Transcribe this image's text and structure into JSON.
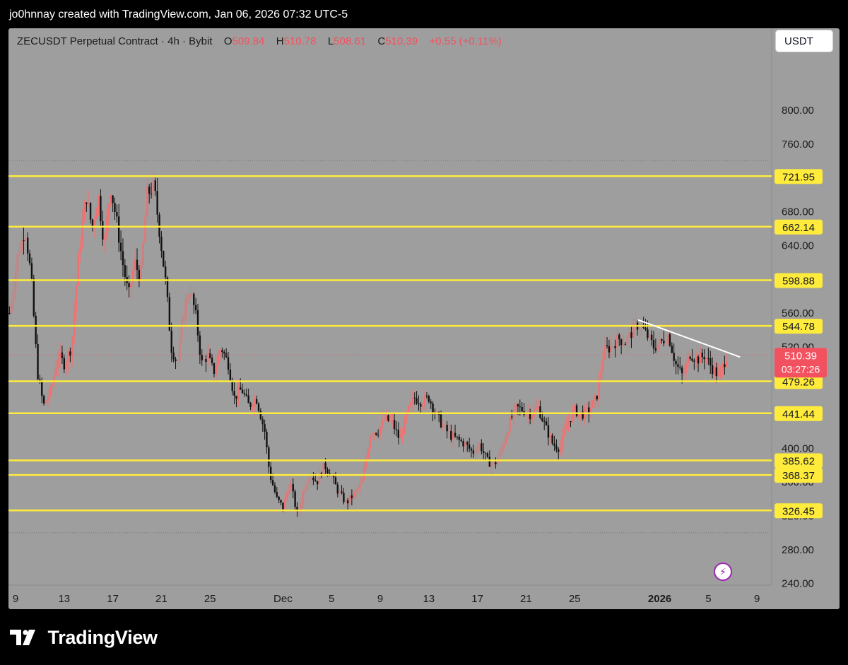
{
  "header": {
    "text": "jo0hnnay created with TradingView.com, Jan 06, 2026 07:32 UTC-5"
  },
  "legend": {
    "symbol": "ZECUSDT Perpetual Contract · 4h · Bybit",
    "o_label": "O",
    "o_value": "509.84",
    "h_label": "H",
    "h_value": "510.78",
    "l_label": "L",
    "l_value": "508.61",
    "c_label": "C",
    "c_value": "510.39",
    "change": "+0.55 (+0.11%)"
  },
  "currency": "USDT",
  "brand": {
    "name": "TradingView"
  },
  "colors": {
    "background": "#9e9e9e",
    "candle_up": "#f07070",
    "candle_down": "#111111",
    "level_line": "#ffeb3b",
    "trend_line": "#ffffff",
    "price_badge": "#f2525f"
  },
  "chart_data": {
    "type": "candlestick",
    "title": "ZECUSDT Perpetual Contract · 4h · Bybit",
    "ylim": [
      200,
      830
    ],
    "y_ticks": [
      "800.00",
      "760.00",
      "680.00",
      "640.00",
      "560.00",
      "520.00",
      "400.00",
      "360.00",
      "320.00",
      "280.00",
      "240.00"
    ],
    "x_ticks": [
      {
        "label": "9",
        "day": 0
      },
      {
        "label": "13",
        "day": 4
      },
      {
        "label": "17",
        "day": 8
      },
      {
        "label": "21",
        "day": 12
      },
      {
        "label": "25",
        "day": 16
      },
      {
        "label": "Dec",
        "day": 22
      },
      {
        "label": "5",
        "day": 26
      },
      {
        "label": "9",
        "day": 30
      },
      {
        "label": "13",
        "day": 34
      },
      {
        "label": "17",
        "day": 38
      },
      {
        "label": "21",
        "day": 42
      },
      {
        "label": "25",
        "day": 46
      },
      {
        "label": "2026",
        "day": 53,
        "bold": true
      },
      {
        "label": "5",
        "day": 57
      },
      {
        "label": "9",
        "day": 61
      }
    ],
    "horizontal_levels": [
      721.95,
      662.14,
      598.88,
      544.78,
      479.26,
      441.44,
      385.62,
      368.37,
      326.45
    ],
    "dotted_levels": [
      740,
      300
    ],
    "last_price": {
      "value": 510.39,
      "label": "510.39",
      "countdown": "03:27:26"
    },
    "trend_line": {
      "from": {
        "day": 51.2,
        "value": 552
      },
      "to": {
        "day": 59.6,
        "value": 508
      }
    },
    "price_path": [
      {
        "day": -0.5,
        "value": 560
      },
      {
        "day": 0.2,
        "value": 630
      },
      {
        "day": 0.8,
        "value": 660
      },
      {
        "day": 1.3,
        "value": 600
      },
      {
        "day": 1.8,
        "value": 490
      },
      {
        "day": 2.3,
        "value": 450
      },
      {
        "day": 2.9,
        "value": 470
      },
      {
        "day": 3.5,
        "value": 510
      },
      {
        "day": 4.0,
        "value": 500
      },
      {
        "day": 4.6,
        "value": 520
      },
      {
        "day": 5.2,
        "value": 630
      },
      {
        "day": 5.8,
        "value": 700
      },
      {
        "day": 6.3,
        "value": 660
      },
      {
        "day": 6.8,
        "value": 700
      },
      {
        "day": 7.3,
        "value": 640
      },
      {
        "day": 7.8,
        "value": 710
      },
      {
        "day": 8.3,
        "value": 670
      },
      {
        "day": 8.8,
        "value": 620
      },
      {
        "day": 9.3,
        "value": 580
      },
      {
        "day": 9.8,
        "value": 620
      },
      {
        "day": 10.3,
        "value": 600
      },
      {
        "day": 10.8,
        "value": 700
      },
      {
        "day": 11.4,
        "value": 710
      },
      {
        "day": 11.9,
        "value": 650
      },
      {
        "day": 12.4,
        "value": 590
      },
      {
        "day": 12.8,
        "value": 520
      },
      {
        "day": 13.3,
        "value": 500
      },
      {
        "day": 13.8,
        "value": 560
      },
      {
        "day": 14.3,
        "value": 590
      },
      {
        "day": 14.8,
        "value": 560
      },
      {
        "day": 15.3,
        "value": 500
      },
      {
        "day": 15.8,
        "value": 510
      },
      {
        "day": 16.3,
        "value": 490
      },
      {
        "day": 16.9,
        "value": 520
      },
      {
        "day": 17.5,
        "value": 500
      },
      {
        "day": 18.0,
        "value": 460
      },
      {
        "day": 18.6,
        "value": 470
      },
      {
        "day": 19.2,
        "value": 450
      },
      {
        "day": 19.8,
        "value": 460
      },
      {
        "day": 20.5,
        "value": 420
      },
      {
        "day": 20.9,
        "value": 370
      },
      {
        "day": 21.5,
        "value": 340
      },
      {
        "day": 22.0,
        "value": 330
      },
      {
        "day": 22.6,
        "value": 360
      },
      {
        "day": 23.2,
        "value": 320
      },
      {
        "day": 23.7,
        "value": 350
      },
      {
        "day": 24.2,
        "value": 370
      },
      {
        "day": 24.8,
        "value": 360
      },
      {
        "day": 25.4,
        "value": 380
      },
      {
        "day": 25.9,
        "value": 370
      },
      {
        "day": 26.5,
        "value": 350
      },
      {
        "day": 27.2,
        "value": 335
      },
      {
        "day": 27.8,
        "value": 345
      },
      {
        "day": 28.5,
        "value": 360
      },
      {
        "day": 29.2,
        "value": 420
      },
      {
        "day": 29.8,
        "value": 420
      },
      {
        "day": 30.4,
        "value": 435
      },
      {
        "day": 31.0,
        "value": 430
      },
      {
        "day": 31.6,
        "value": 410
      },
      {
        "day": 32.2,
        "value": 440
      },
      {
        "day": 32.8,
        "value": 460
      },
      {
        "day": 33.4,
        "value": 455
      },
      {
        "day": 34.0,
        "value": 460
      },
      {
        "day": 34.6,
        "value": 440
      },
      {
        "day": 35.2,
        "value": 425
      },
      {
        "day": 35.8,
        "value": 415
      },
      {
        "day": 36.4,
        "value": 410
      },
      {
        "day": 37.0,
        "value": 405
      },
      {
        "day": 37.6,
        "value": 395
      },
      {
        "day": 38.2,
        "value": 405
      },
      {
        "day": 38.8,
        "value": 385
      },
      {
        "day": 39.4,
        "value": 380
      },
      {
        "day": 40.0,
        "value": 400
      },
      {
        "day": 40.6,
        "value": 430
      },
      {
        "day": 41.2,
        "value": 448
      },
      {
        "day": 41.8,
        "value": 445
      },
      {
        "day": 42.4,
        "value": 440
      },
      {
        "day": 43.0,
        "value": 448
      },
      {
        "day": 43.6,
        "value": 425
      },
      {
        "day": 44.2,
        "value": 405
      },
      {
        "day": 44.8,
        "value": 400
      },
      {
        "day": 45.4,
        "value": 430
      },
      {
        "day": 46.0,
        "value": 445
      },
      {
        "day": 46.6,
        "value": 440
      },
      {
        "day": 47.2,
        "value": 445
      },
      {
        "day": 47.8,
        "value": 460
      },
      {
        "day": 48.4,
        "value": 515
      },
      {
        "day": 49.0,
        "value": 520
      },
      {
        "day": 49.6,
        "value": 530
      },
      {
        "day": 50.2,
        "value": 525
      },
      {
        "day": 50.8,
        "value": 540
      },
      {
        "day": 51.3,
        "value": 548
      },
      {
        "day": 51.9,
        "value": 535
      },
      {
        "day": 52.5,
        "value": 520
      },
      {
        "day": 53.1,
        "value": 525
      },
      {
        "day": 53.7,
        "value": 535
      },
      {
        "day": 54.3,
        "value": 500
      },
      {
        "day": 54.9,
        "value": 485
      },
      {
        "day": 55.5,
        "value": 512
      },
      {
        "day": 56.1,
        "value": 505
      },
      {
        "day": 56.7,
        "value": 510
      },
      {
        "day": 57.3,
        "value": 495
      },
      {
        "day": 57.9,
        "value": 485
      },
      {
        "day": 58.5,
        "value": 510
      }
    ]
  }
}
